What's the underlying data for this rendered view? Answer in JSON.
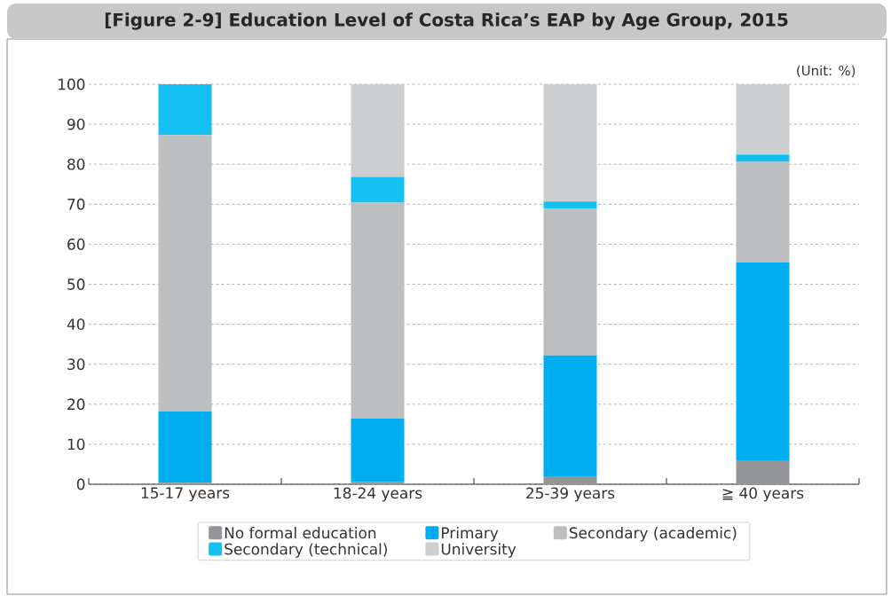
{
  "chart_data": {
    "type": "bar",
    "title": "[Figure 2-9] Education Level of Costa Rica’s EAP by Age Group, 2015",
    "annotations": [
      "(Unit: %)"
    ],
    "categories": [
      "15-17 years",
      "18-24 years",
      "25-39 years",
      "≧ 40 years"
    ],
    "stacked": true,
    "ylim": [
      0,
      100
    ],
    "yticks": [
      0,
      10,
      20,
      30,
      40,
      50,
      60,
      70,
      80,
      90,
      100
    ],
    "grid": "y",
    "legend": "bottom",
    "series": [
      {
        "name": "No formal education",
        "color": "#939598",
        "values": [
          0.4,
          0.6,
          1.8,
          6.0
        ]
      },
      {
        "name": "Primary",
        "color": "#00aeef",
        "values": [
          17.8,
          15.8,
          30.4,
          49.5
        ]
      },
      {
        "name": "Secondary (academic)",
        "color": "#bcbec0",
        "values": [
          69.1,
          54.0,
          36.7,
          25.1
        ]
      },
      {
        "name": "Secondary (technical)",
        "color": "#15c1f2",
        "values": [
          12.7,
          6.4,
          1.8,
          1.8
        ]
      },
      {
        "name": "University",
        "color": "#cdcecf",
        "values": [
          0,
          23.2,
          29.3,
          17.6
        ]
      }
    ]
  }
}
